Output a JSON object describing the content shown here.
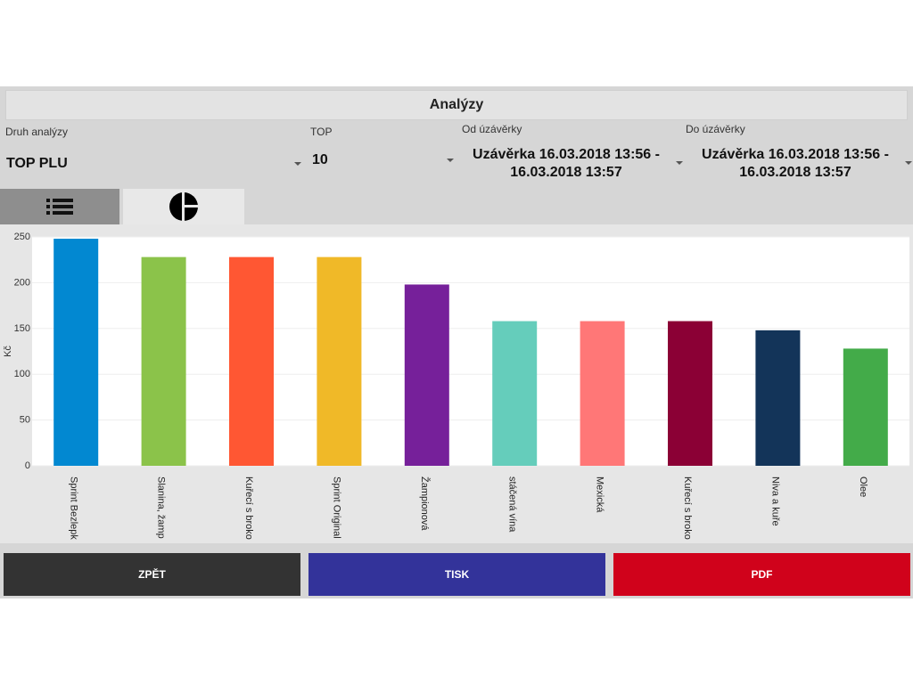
{
  "header": {
    "title": "Analýzy"
  },
  "filters": {
    "analysis_type": {
      "label": "Druh analýzy",
      "value": "TOP PLU"
    },
    "top": {
      "label": "TOP",
      "value": "10"
    },
    "from_closure": {
      "label": "Od úzávěrky",
      "value_line1": "Uzávěrka 16.03.2018 13:56 -",
      "value_line2": "16.03.2018 13:57"
    },
    "to_closure": {
      "label": "Do úzávěrky",
      "value_line1": "Uzávěrka 16.03.2018 13:56 -",
      "value_line2": "16.03.2018 13:57"
    }
  },
  "tabs": [
    {
      "icon": "list-icon",
      "active": false
    },
    {
      "icon": "pie-chart-icon",
      "active": true
    }
  ],
  "chart_data": {
    "type": "bar",
    "categories": [
      "Sprint Bezlepk",
      "Slanina, žamp",
      "Kuřecí s broko",
      "Sprint Original",
      "Žampionová",
      "stáčená vína",
      "Mexická",
      "Kuřecí s broko",
      "Niva a kuře",
      "Olee"
    ],
    "values": [
      248,
      228,
      228,
      228,
      198,
      158,
      158,
      158,
      148,
      128
    ],
    "colors": [
      "#0288d1",
      "#8bc34a",
      "#ff5733",
      "#f0b928",
      "#76209a",
      "#65cdbb",
      "#ff7777",
      "#8b0035",
      "#133459",
      "#43ab49"
    ],
    "ylabel": "Kč",
    "ylim": [
      0,
      250
    ],
    "yticks": [
      0,
      50,
      100,
      150,
      200,
      250
    ],
    "xlabel": "",
    "title": ""
  },
  "buttons": {
    "back": {
      "label": "ZPĚT",
      "color": "#333333"
    },
    "print": {
      "label": "TISK",
      "color": "#33339a"
    },
    "pdf": {
      "label": "PDF",
      "color": "#d0021b"
    }
  }
}
